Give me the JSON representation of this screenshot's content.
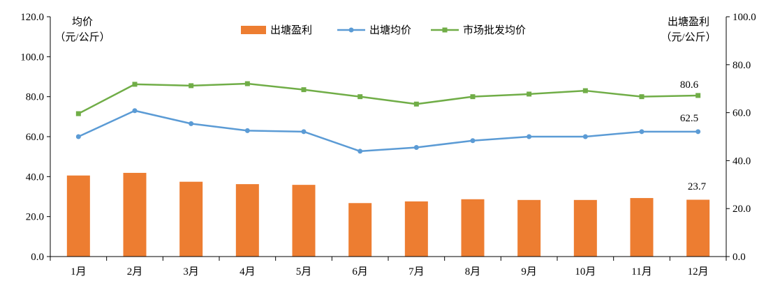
{
  "chart_data": {
    "type": "bar",
    "categories": [
      "1月",
      "2月",
      "3月",
      "4月",
      "5月",
      "6月",
      "7月",
      "8月",
      "9月",
      "10月",
      "11月",
      "12月"
    ],
    "series": [
      {
        "name": "出塘盈利",
        "type": "bar",
        "axis": "right",
        "color": "#ED7D31",
        "values": [
          33.8,
          34.9,
          31.2,
          30.2,
          29.9,
          22.3,
          23.0,
          23.9,
          23.6,
          23.6,
          24.4,
          23.7
        ]
      },
      {
        "name": "出塘均价",
        "type": "line",
        "axis": "left",
        "color": "#5B9BD5",
        "values": [
          60.0,
          73.0,
          66.5,
          63.0,
          62.5,
          52.7,
          54.6,
          58.0,
          60.0,
          60.0,
          62.5,
          62.5
        ]
      },
      {
        "name": "市场批发均价",
        "type": "line",
        "axis": "left",
        "color": "#70AD47",
        "values": [
          71.5,
          86.2,
          85.5,
          86.5,
          83.5,
          80.0,
          76.3,
          80.0,
          81.3,
          83.0,
          80.0,
          80.6
        ]
      }
    ],
    "left_axis": {
      "title_line1": "均价",
      "title_line2": "（元/公斤）",
      "ylim": [
        0,
        120
      ],
      "ticks": [
        "0.0",
        "20.0",
        "40.0",
        "60.0",
        "80.0",
        "100.0",
        "120.0"
      ]
    },
    "right_axis": {
      "title_line1": "出塘盈利",
      "title_line2": "（元/公斤）",
      "ylim": [
        0,
        100
      ],
      "ticks": [
        "0.0",
        "20.0",
        "40.0",
        "60.0",
        "80.0",
        "100.0"
      ]
    },
    "data_labels": {
      "bar_last": "23.7",
      "avg_last": "62.5",
      "market_last": "80.6"
    },
    "legend_position": "top-center",
    "grid": false
  }
}
